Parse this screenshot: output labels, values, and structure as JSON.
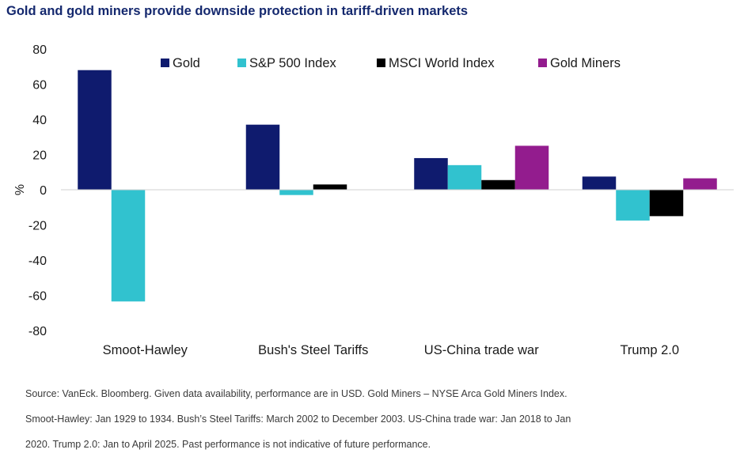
{
  "chart_data": {
    "type": "bar",
    "title": "Gold and gold miners provide downside protection in tariff-driven markets",
    "xlabel": "",
    "ylabel": "%",
    "ylim": [
      -80,
      80
    ],
    "yticks": [
      80,
      60,
      40,
      20,
      0,
      -20,
      -40,
      -60,
      -80
    ],
    "grid": false,
    "legend_position": "top",
    "categories": [
      "Smoot-Hawley",
      "Bush's Steel Tariffs",
      "US-China trade war",
      "Trump 2.0"
    ],
    "series": [
      {
        "name": "Gold",
        "color": "#0f1b6e",
        "values": [
          68,
          37,
          18,
          7.5
        ]
      },
      {
        "name": "S&P 500 Index",
        "color": "#31c2cf",
        "values": [
          -63.5,
          -3,
          14,
          -17.5
        ]
      },
      {
        "name": "MSCI World Index",
        "color": "#000000",
        "values": [
          null,
          3,
          5.5,
          -15
        ]
      },
      {
        "name": "Gold Miners",
        "color": "#931c8e",
        "values": [
          null,
          null,
          25,
          6.5
        ]
      }
    ]
  },
  "notes": [
    "Source: VanEck. Bloomberg. Given data availability, performance are in USD. Gold Miners – NYSE Arca Gold Miners Index.",
    "Smoot-Hawley: Jan 1929 to 1934. Bush’s Steel Tariffs: March 2002 to December 2003. US-China trade war: Jan 2018 to Jan",
    "2020. Trump 2.0: Jan to April 2025. Past performance is not indicative of future performance."
  ]
}
